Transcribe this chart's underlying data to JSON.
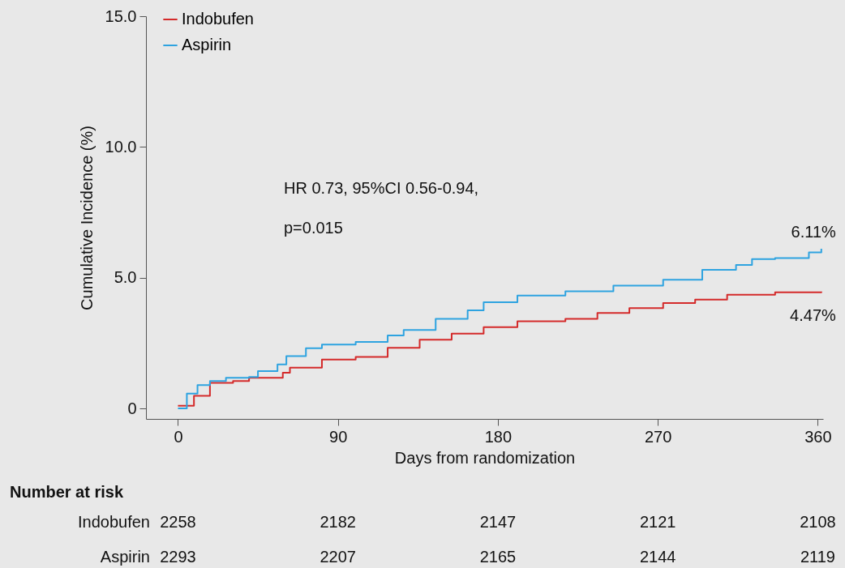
{
  "chart_data": {
    "type": "step",
    "xlabel": "Days from randomization",
    "ylabel": "Cumulative Incidence (%)",
    "xlim": [
      -18,
      363
    ],
    "xticks": [
      0,
      90,
      180,
      270,
      360
    ],
    "ylim": [
      -0.4,
      15
    ],
    "yticks": [
      {
        "value": 0,
        "label": "0"
      },
      {
        "value": 5,
        "label": "5.0"
      },
      {
        "value": 10,
        "label": "10.0"
      },
      {
        "value": 15,
        "label": "15.0"
      }
    ],
    "grid": false,
    "legend": "top left",
    "line_style": "solid",
    "marker": "none",
    "series": [
      {
        "name": "Indobufen",
        "color": "#d42a2a",
        "x": [
          0,
          9,
          18,
          31,
          40,
          59,
          63,
          81,
          100,
          118,
          136,
          154,
          172,
          191,
          218,
          236,
          254,
          273,
          291,
          309,
          336,
          362
        ],
        "values": [
          0.1,
          0.48,
          0.98,
          1.05,
          1.17,
          1.37,
          1.56,
          1.87,
          1.97,
          2.32,
          2.63,
          2.86,
          3.11,
          3.33,
          3.43,
          3.65,
          3.84,
          4.03,
          4.16,
          4.35,
          4.44,
          4.47
        ]
      },
      {
        "name": "Aspirin",
        "color": "#2ea3e0",
        "x": [
          0,
          5,
          11,
          18,
          27,
          40,
          45,
          56,
          61,
          72,
          81,
          100,
          118,
          127,
          145,
          163,
          172,
          191,
          218,
          245,
          273,
          295,
          314,
          323,
          336,
          355,
          362
        ],
        "values": [
          0,
          0.57,
          0.89,
          1.05,
          1.17,
          1.2,
          1.43,
          1.68,
          2.0,
          2.3,
          2.44,
          2.54,
          2.79,
          3.0,
          3.43,
          3.75,
          4.06,
          4.32,
          4.48,
          4.7,
          4.92,
          5.3,
          5.49,
          5.71,
          5.75,
          5.97,
          6.11
        ]
      }
    ],
    "annotations": [
      "HR 0.73, 95%CI 0.56-0.94,",
      "p=0.015",
      "Number at risk",
      "Indobufen",
      "Aspirin",
      {
        "text": "6.11%",
        "x": 362,
        "y": 6.11
      },
      {
        "text": "4.47%",
        "x": 362,
        "y": 4.47
      },
      "2258",
      "2182",
      "2147",
      "2121",
      "2108",
      "2293",
      "2207",
      "2165",
      "2144",
      "2119"
    ]
  }
}
